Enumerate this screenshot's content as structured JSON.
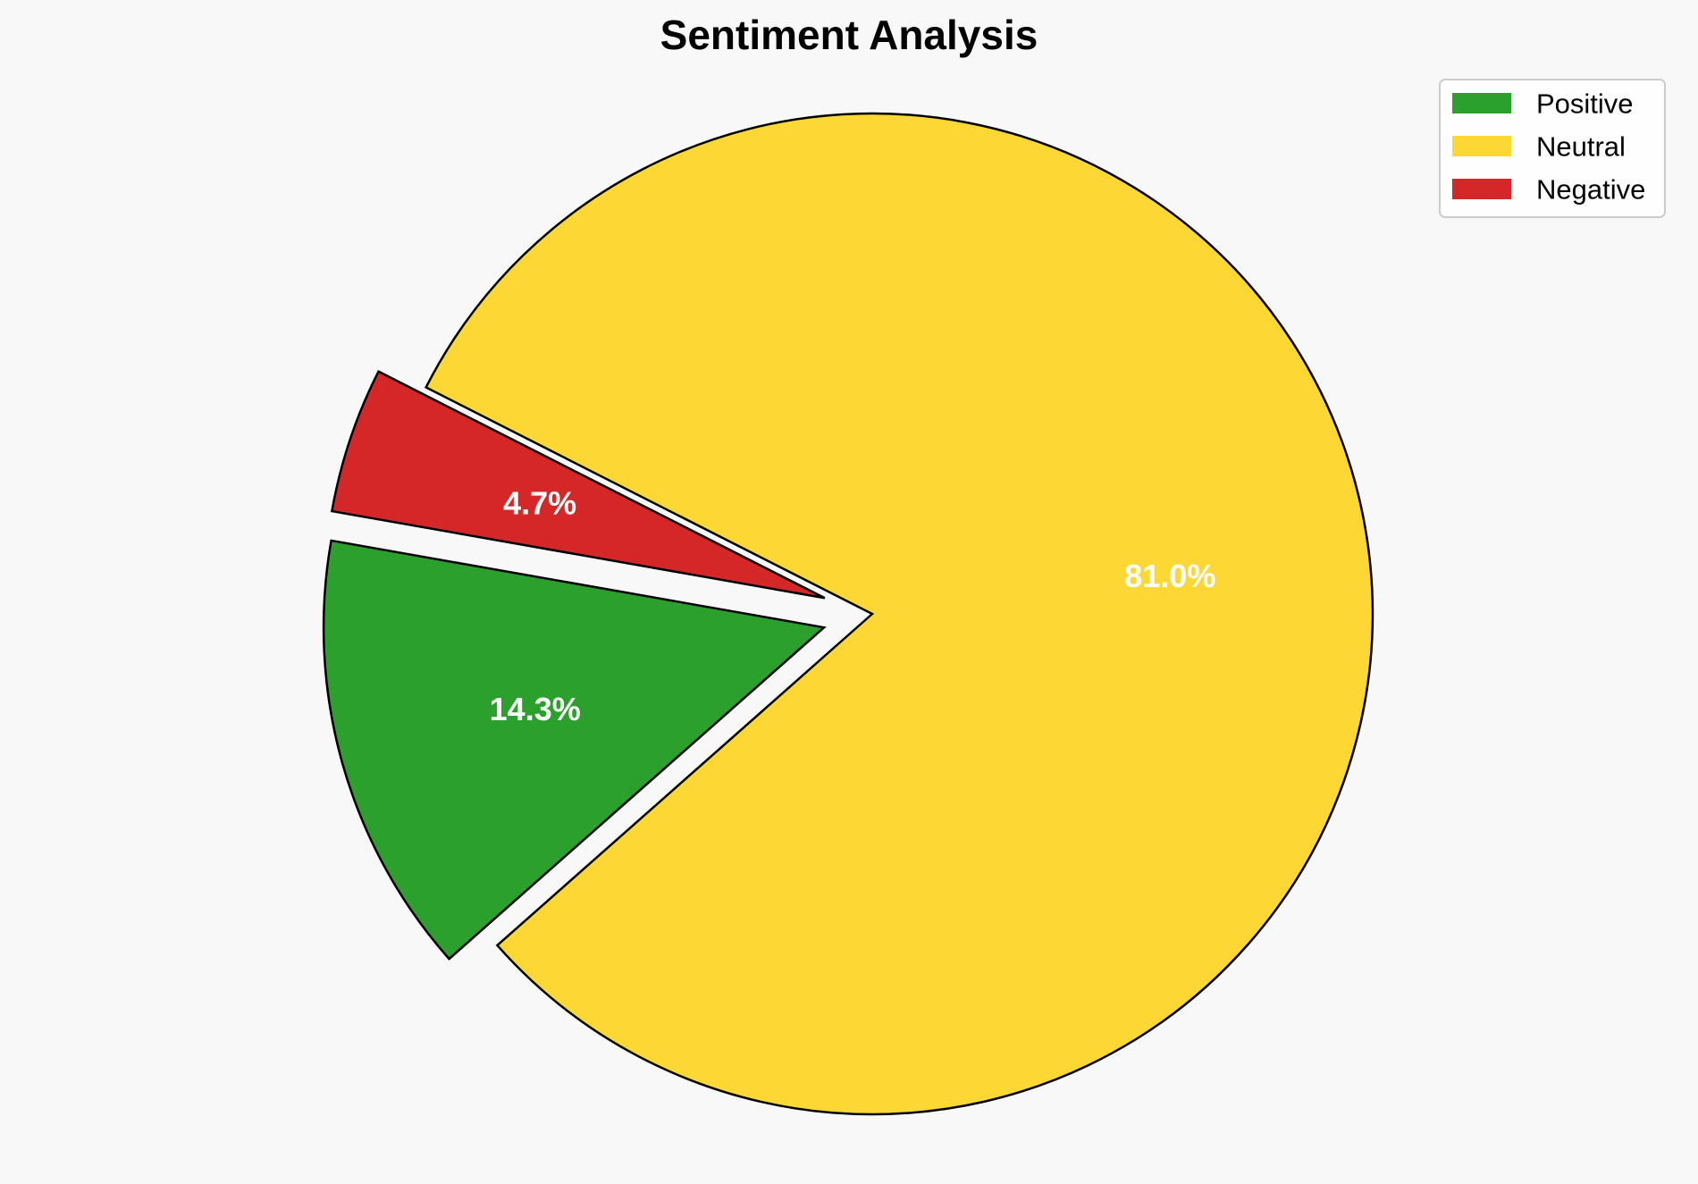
{
  "chart_data": {
    "type": "pie",
    "title": "Sentiment Analysis",
    "categories": [
      "Positive",
      "Neutral",
      "Negative"
    ],
    "values": [
      14.3,
      81.0,
      4.7
    ],
    "labels": [
      "14.3%",
      "81.0%",
      "4.7%"
    ],
    "colors": [
      "#2ca02c",
      "#fdd835",
      "#d62728"
    ],
    "exploded": [
      true,
      false,
      true
    ],
    "start_angle_deg": 170,
    "direction": "counterclockwise",
    "edge_color": "#000000",
    "legend_position": "top-right"
  }
}
